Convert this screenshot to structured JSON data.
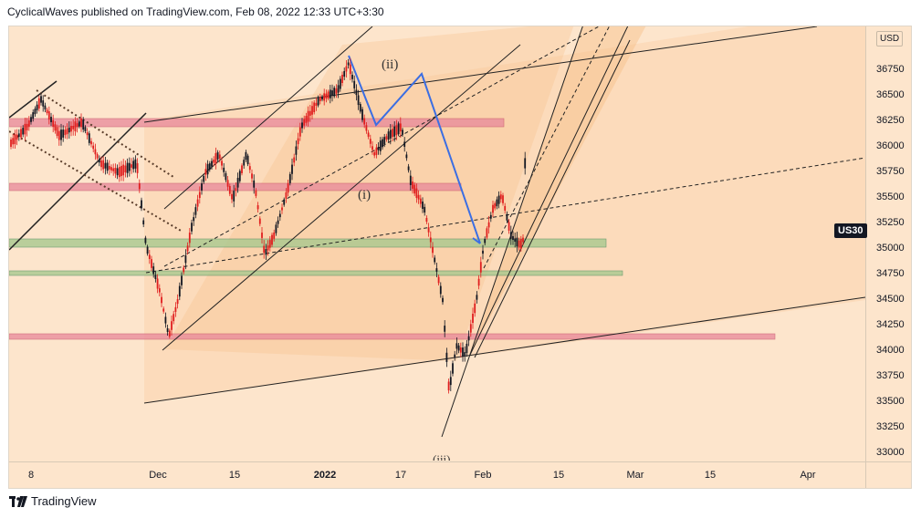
{
  "header": {
    "text": "CyclicalWaves published on TradingView.com, Feb 08, 2022 12:33 UTC+3:30"
  },
  "price_scale": {
    "currency": "USD",
    "labels": [
      "36750",
      "36500",
      "36250",
      "36000",
      "35750",
      "35500",
      "35250",
      "35000",
      "34750",
      "34500",
      "34250",
      "34000",
      "33750",
      "33500",
      "33250",
      "33000"
    ],
    "symbol_tag": "US30"
  },
  "time_scale": {
    "labels": [
      {
        "text": "8",
        "bold": false
      },
      {
        "text": "Dec",
        "bold": false
      },
      {
        "text": "15",
        "bold": false
      },
      {
        "text": "2022",
        "bold": true
      },
      {
        "text": "17",
        "bold": false
      },
      {
        "text": "Feb",
        "bold": false
      },
      {
        "text": "15",
        "bold": false
      },
      {
        "text": "Mar",
        "bold": false
      },
      {
        "text": "15",
        "bold": false
      },
      {
        "text": "Apr",
        "bold": false
      }
    ]
  },
  "wave_labels": {
    "w1": "(i)",
    "w2": "(ii)",
    "w3": "(iii)"
  },
  "colors": {
    "background": "#fde5cc",
    "channel_fill": "#f8c99a",
    "zone_red": "#e8889a",
    "zone_green": "#a9c98f",
    "impulse": "#3b6ee3",
    "candle_up": "#131722",
    "candle_down": "#e01e1e"
  },
  "footer": {
    "brand": "TradingView"
  }
}
